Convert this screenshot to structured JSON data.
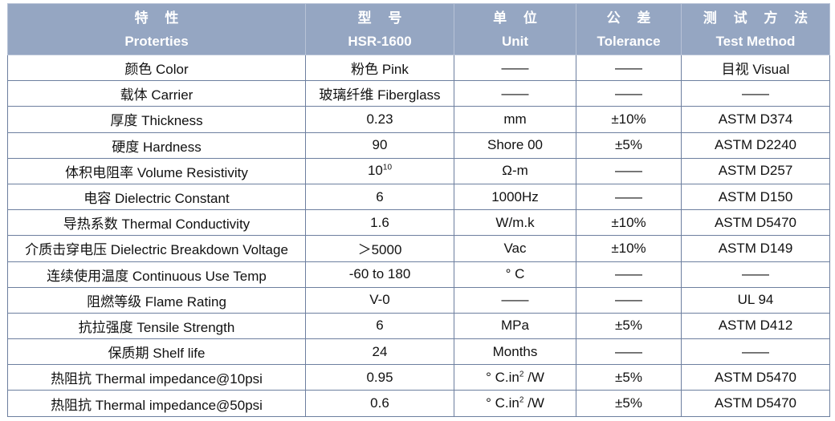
{
  "header": {
    "col1": {
      "cn": "特 性",
      "en": "Proterties"
    },
    "col2": {
      "cn": "型 号",
      "en": "HSR-1600"
    },
    "col3": {
      "cn": "单 位",
      "en": "Unit"
    },
    "col4": {
      "cn": "公 差",
      "en": "Tolerance"
    },
    "col5": {
      "cn": "测 试 方 法",
      "en": "Test Method"
    }
  },
  "rows": [
    {
      "property": "颜色 Color",
      "value": "粉色  Pink",
      "unit": "——",
      "tolerance": "——",
      "method": "目视  Visual"
    },
    {
      "property": "载体 Carrier",
      "value": "玻璃纤维 Fiberglass",
      "unit": "——",
      "tolerance": "——",
      "method": "——"
    },
    {
      "property": "厚度 Thickness",
      "value": "0.23",
      "unit": "mm",
      "tolerance": "±10%",
      "method": "ASTM D374"
    },
    {
      "property": "硬度 Hardness",
      "value": "90",
      "unit": "Shore 00",
      "tolerance": "±5%",
      "method": "ASTM D2240"
    },
    {
      "property": "体积电阻率 Volume Resistivity",
      "value": "10",
      "value_sup": "10",
      "unit": "Ω-m",
      "tolerance": "——",
      "method": "ASTM D257"
    },
    {
      "property": "电容 Dielectric Constant",
      "value": "6",
      "unit": "1000Hz",
      "tolerance": "——",
      "method": "ASTM D150"
    },
    {
      "property": "导热系数 Thermal Conductivity",
      "value": "1.6",
      "unit": "W/m.k",
      "tolerance": "±10%",
      "method": "ASTM D5470"
    },
    {
      "property": "介质击穿电压 Dielectric Breakdown Voltage",
      "value": "＞5000",
      "unit": "Vac",
      "tolerance": "±10%",
      "method": "ASTM D149"
    },
    {
      "property": "连续使用温度 Continuous Use Temp",
      "value": "-60 to 180",
      "unit": "° C",
      "tolerance": "——",
      "method": "——"
    },
    {
      "property": "阻燃等级 Flame Rating",
      "value": "V-0",
      "unit": "——",
      "tolerance": "——",
      "method": "UL 94"
    },
    {
      "property": "抗拉强度 Tensile Strength",
      "value": "6",
      "unit": "MPa",
      "tolerance": "±5%",
      "method": "ASTM D412"
    },
    {
      "property": "保质期 Shelf life",
      "value": "24",
      "unit": "Months",
      "tolerance": "——",
      "method": "——"
    },
    {
      "property": "热阻抗 Thermal impedance@10psi",
      "value": "0.95",
      "unit": "° C.in",
      "unit_sup": "2",
      "unit_suffix": " /W",
      "tolerance": "±5%",
      "method": "ASTM D5470"
    },
    {
      "property": "热阻抗 Thermal impedance@50psi",
      "value": "0.6",
      "unit": "° C.in",
      "unit_sup": "2",
      "unit_suffix": " /W",
      "tolerance": "±5%",
      "method": "ASTM D5470"
    }
  ]
}
